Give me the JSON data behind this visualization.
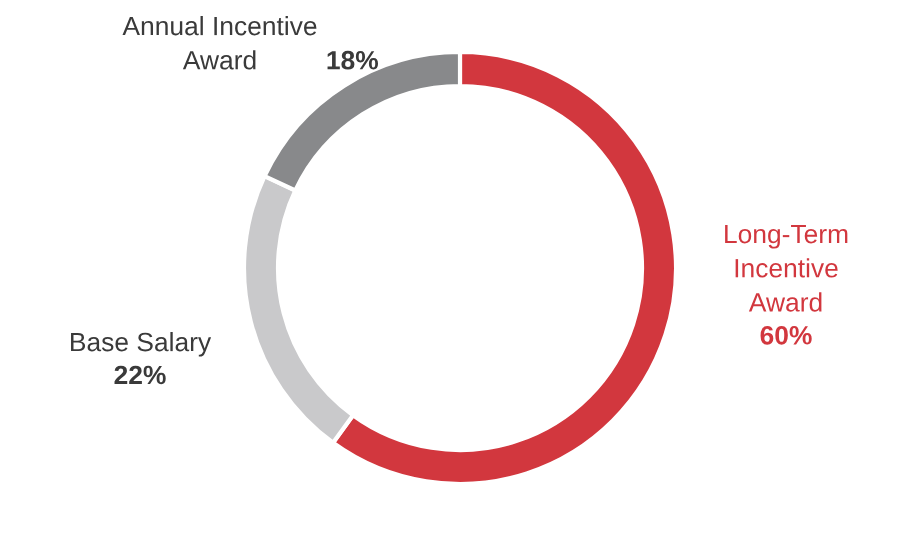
{
  "chart_data": {
    "type": "donut",
    "categories": [
      "Long-Term\nIncentive\nAward",
      "Base Salary",
      "Annual Incentive\nAward"
    ],
    "values": [
      60,
      22,
      18
    ],
    "colors": [
      "#d2373e",
      "#c9c9cb",
      "#88898b"
    ],
    "value_labels": [
      "60%",
      "22%",
      "18%"
    ]
  }
}
